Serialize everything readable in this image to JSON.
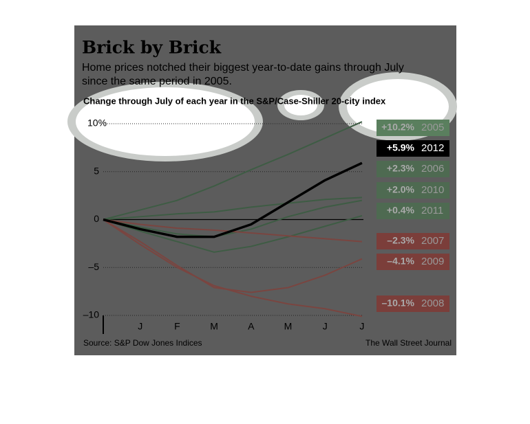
{
  "chart_data": {
    "type": "line",
    "title": "Brick by Brick",
    "subtitle": "Home prices notched their biggest year-to-date gains through July since the same period in 2005.",
    "chart_label": "Change through July of each year in the S&P/Case-Shiller 20-city index",
    "source": "Source: S&P Dow Jones Indices",
    "credit": "The Wall Street Journal",
    "categories": [
      null,
      "J",
      "F",
      "M",
      "A",
      "M",
      "J",
      "J"
    ],
    "ylim": [
      -10,
      10
    ],
    "yticks": [
      {
        "value": 10,
        "label": "10%"
      },
      5,
      0,
      {
        "value": -5,
        "label": "–5"
      },
      {
        "value": -10,
        "label": "–10"
      }
    ],
    "grid": true,
    "series": [
      {
        "name": "2005",
        "color": "#3e5c44",
        "label_color": "#5a7f5e",
        "values": [
          0,
          1.0,
          2.0,
          3.5,
          5.2,
          6.8,
          8.5,
          10.2
        ],
        "value_labels": [
          null,
          null,
          null,
          null,
          null,
          null,
          null,
          "+10.2%"
        ]
      },
      {
        "name": "2006",
        "color": "#3e5c44",
        "label_color": "#4e6a51",
        "values": [
          0,
          0.3,
          0.6,
          0.8,
          1.3,
          1.7,
          2.1,
          2.3
        ],
        "value_labels": [
          null,
          null,
          null,
          null,
          null,
          null,
          null,
          "+2.3%"
        ]
      },
      {
        "name": "2010",
        "color": "#3e5c44",
        "label_color": "#4e6a51",
        "values": [
          0,
          -0.8,
          -1.5,
          -1.8,
          -1.0,
          0.3,
          1.3,
          2.0
        ],
        "value_labels": [
          null,
          null,
          null,
          null,
          null,
          null,
          null,
          "+2.0%"
        ]
      },
      {
        "name": "2011",
        "color": "#3e5c44",
        "label_color": "#4e6a51",
        "values": [
          0,
          -1.2,
          -2.3,
          -3.4,
          -2.8,
          -1.8,
          -0.7,
          0.4
        ],
        "value_labels": [
          null,
          null,
          null,
          null,
          null,
          null,
          null,
          "+0.4%"
        ]
      },
      {
        "name": "2007",
        "color": "#7a4540",
        "label_color": "#7b3e3a",
        "values": [
          0,
          -0.5,
          -0.9,
          -1.1,
          -1.4,
          -1.7,
          -2.0,
          -2.3
        ],
        "value_labels": [
          null,
          null,
          null,
          null,
          null,
          null,
          null,
          "–2.3%"
        ]
      },
      {
        "name": "2009",
        "color": "#7a4540",
        "label_color": "#7b3e3a",
        "values": [
          0,
          -2.3,
          -4.8,
          -7.1,
          -7.6,
          -7.1,
          -5.8,
          -4.1
        ],
        "value_labels": [
          null,
          null,
          null,
          null,
          null,
          null,
          null,
          "–4.1%"
        ]
      },
      {
        "name": "2008",
        "color": "#7a4540",
        "label_color": "#7b3e3a",
        "values": [
          0,
          -2.6,
          -5.0,
          -6.9,
          -8.0,
          -8.8,
          -9.3,
          -10.1
        ],
        "value_labels": [
          null,
          null,
          null,
          null,
          null,
          null,
          null,
          "–10.1%"
        ]
      },
      {
        "name": "2012",
        "color": "#000000",
        "label_color": "#000000",
        "values": [
          0,
          -1.0,
          -1.8,
          -1.8,
          -0.5,
          1.8,
          4.1,
          5.9
        ],
        "value_labels": [
          null,
          null,
          null,
          null,
          null,
          null,
          null,
          "+5.9%"
        ]
      }
    ]
  }
}
